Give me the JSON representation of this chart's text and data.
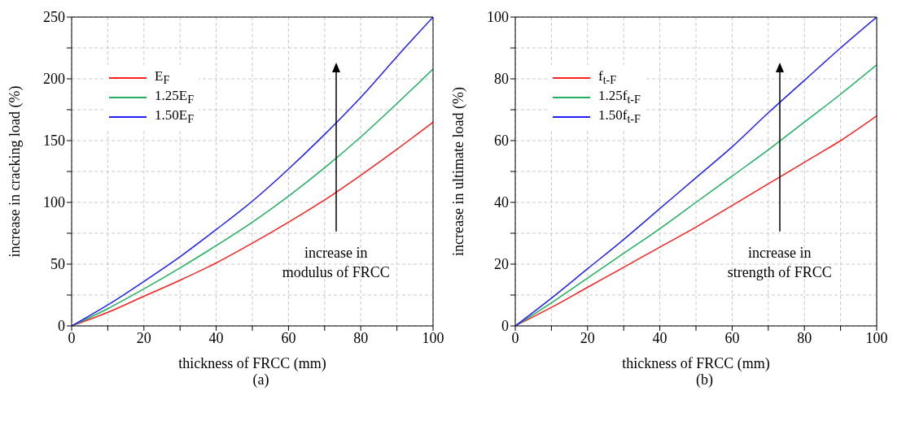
{
  "chart_data": [
    {
      "type": "line",
      "title": "(a)",
      "xlabel": "thickness of FRCC (mm)",
      "ylabel": "increase in cracking load (%)",
      "x": [
        0,
        10,
        20,
        30,
        40,
        50,
        60,
        70,
        80,
        90,
        100
      ],
      "series": [
        {
          "name": "E$_{F}$",
          "color": "#ff2020",
          "values": [
            0,
            11,
            24,
            37,
            51,
            67,
            84,
            102,
            122,
            143,
            165
          ]
        },
        {
          "name": "1.25E$_{F}$",
          "color": "#20b060",
          "values": [
            0,
            14,
            30,
            47,
            65,
            84,
            105,
            128,
            153,
            180,
            208
          ]
        },
        {
          "name": "1.50E$_{F}$",
          "color": "#2020ff",
          "values": [
            0,
            17,
            36,
            56,
            78,
            101,
            127,
            155,
            185,
            218,
            250
          ]
        }
      ],
      "xlim": [
        0,
        100
      ],
      "xticks": [
        0,
        {
          "value": 10,
          "label": null
        },
        20,
        {
          "value": 30,
          "label": null
        },
        40,
        {
          "value": 50,
          "label": null
        },
        60,
        {
          "value": 70,
          "label": null
        },
        80,
        {
          "value": 90,
          "label": null
        },
        100
      ],
      "ylim": [
        0,
        250
      ],
      "yticks": [
        0,
        {
          "value": 25,
          "label": null
        },
        50,
        {
          "value": 75,
          "label": null
        },
        100,
        {
          "value": 125,
          "label": null
        },
        150,
        {
          "value": 175,
          "label": null
        },
        200,
        {
          "value": 225,
          "label": null
        },
        250
      ],
      "grid": true,
      "legend": "top left",
      "annotations": [
        "increase in\nmodulus of FRCC"
      ]
    },
    {
      "type": "line",
      "title": "(b)",
      "xlabel": "thickness of FRCC (mm)",
      "ylabel": "increase in ultimate load (%)",
      "x": [
        0,
        10,
        20,
        30,
        40,
        50,
        60,
        70,
        80,
        90,
        100
      ],
      "series": [
        {
          "name": "f$_{t-F}$",
          "color": "#ff2020",
          "values": [
            0,
            6,
            12.5,
            19,
            25.5,
            32,
            39,
            46,
            53,
            60,
            68
          ]
        },
        {
          "name": "1.25f$_{t-F}$",
          "color": "#20b060",
          "values": [
            0,
            7.5,
            15.5,
            23.5,
            31.5,
            40,
            48.5,
            57,
            66,
            75,
            84.5
          ]
        },
        {
          "name": "1.50f$_{t-F}$",
          "color": "#2020ff",
          "values": [
            0,
            9,
            18.5,
            28,
            38,
            48,
            58,
            69,
            79.5,
            90,
            100
          ]
        }
      ],
      "xlim": [
        0,
        100
      ],
      "xticks": [
        0,
        {
          "value": 10,
          "label": null
        },
        20,
        {
          "value": 30,
          "label": null
        },
        40,
        {
          "value": 50,
          "label": null
        },
        60,
        {
          "value": 70,
          "label": null
        },
        80,
        {
          "value": 90,
          "label": null
        },
        100
      ],
      "ylim": [
        0,
        100
      ],
      "yticks": [
        0,
        {
          "value": 10,
          "label": null
        },
        20,
        {
          "value": 30,
          "label": null
        },
        40,
        {
          "value": 50,
          "label": null
        },
        60,
        {
          "value": 70,
          "label": null
        },
        80,
        {
          "value": 90,
          "label": null
        },
        100
      ],
      "grid": true,
      "legend": "top left",
      "annotations": [
        "increase in\nstrength of FRCC"
      ]
    }
  ]
}
